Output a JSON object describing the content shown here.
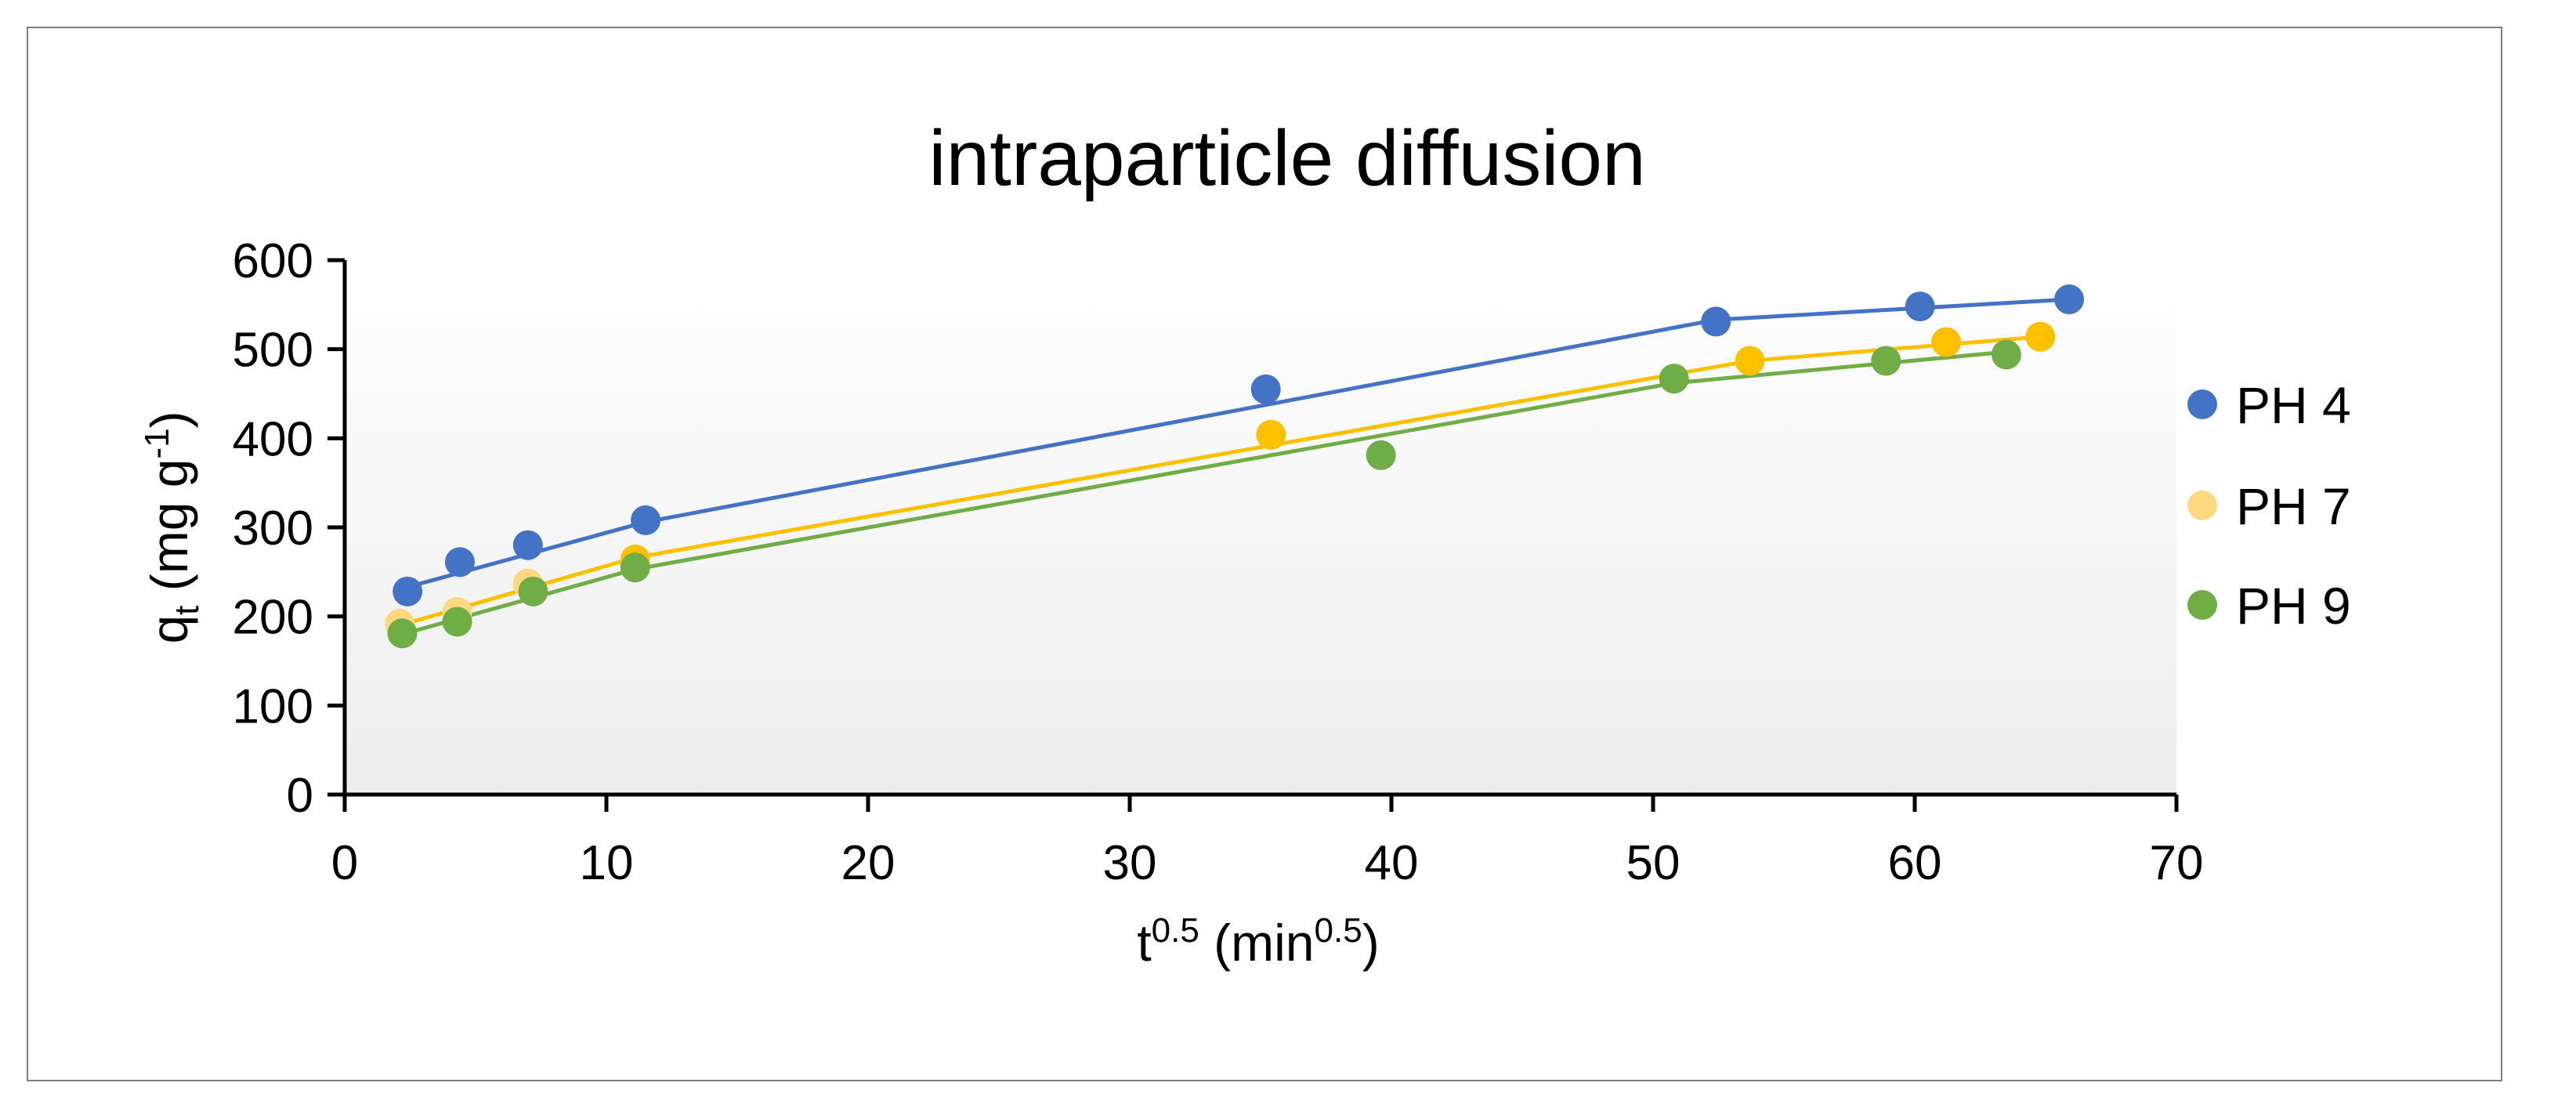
{
  "chart_data": {
    "type": "scatter",
    "title": "intraparticle diffusion",
    "xlabel": {
      "base": "t",
      "sup": "0.5",
      "rest": " (min",
      "sup2": "0.5",
      "close": ")"
    },
    "ylabel": {
      "base": "q",
      "sub": "t",
      "rest": " (mg g",
      "sup": "-1",
      "close": ")"
    },
    "xlim": [
      0,
      70
    ],
    "ylim": [
      0,
      600
    ],
    "xticks": [
      "0",
      "10",
      "20",
      "30",
      "40",
      "50",
      "60",
      "70"
    ],
    "yticks": [
      "0",
      "100",
      "200",
      "300",
      "400",
      "500",
      "600"
    ],
    "grid": false,
    "legend_position": "right",
    "series": [
      {
        "name": "PH 4",
        "color": "#4472C4",
        "line_color": "#4472C4",
        "points": [
          [
            2.4,
            228
          ],
          [
            4.4,
            261
          ],
          [
            7.0,
            280
          ],
          [
            11.5,
            308
          ],
          [
            35.2,
            455
          ],
          [
            52.4,
            531
          ],
          [
            60.2,
            548
          ],
          [
            65.9,
            556
          ]
        ],
        "fit_lines": [
          [
            [
              2.4,
              233
            ],
            [
              11.5,
              306
            ]
          ],
          [
            [
              11.5,
              306
            ],
            [
              52.4,
              533
            ]
          ],
          [
            [
              52.4,
              533
            ],
            [
              65.9,
              556
            ]
          ]
        ]
      },
      {
        "name": "PH 7",
        "color": "#FFC000",
        "light_color": "#FFD880",
        "line_color": "#FFC000",
        "light_points": 3,
        "points": [
          [
            2.1,
            192
          ],
          [
            4.3,
            205
          ],
          [
            7.0,
            237
          ],
          [
            11.1,
            264
          ],
          [
            35.4,
            404
          ],
          [
            53.7,
            487
          ],
          [
            61.2,
            508
          ],
          [
            64.8,
            514
          ]
        ],
        "fit_lines": [
          [
            [
              2.1,
              190
            ],
            [
              11.1,
              266
            ]
          ],
          [
            [
              11.1,
              266
            ],
            [
              53.7,
              487
            ]
          ],
          [
            [
              53.7,
              487
            ],
            [
              64.8,
              514
            ]
          ]
        ]
      },
      {
        "name": "PH 9",
        "color": "#70AD47",
        "line_color": "#70AD47",
        "points": [
          [
            2.2,
            181
          ],
          [
            4.3,
            194
          ],
          [
            7.2,
            228
          ],
          [
            11.1,
            255
          ],
          [
            39.6,
            381
          ],
          [
            50.8,
            467
          ],
          [
            58.9,
            487
          ],
          [
            63.5,
            494
          ]
        ],
        "fit_lines": [
          [
            [
              2.2,
              180
            ],
            [
              11.1,
              253
            ]
          ],
          [
            [
              11.1,
              253
            ],
            [
              50.8,
              462
            ]
          ],
          [
            [
              50.8,
              462
            ],
            [
              63.5,
              497
            ]
          ]
        ]
      }
    ]
  }
}
